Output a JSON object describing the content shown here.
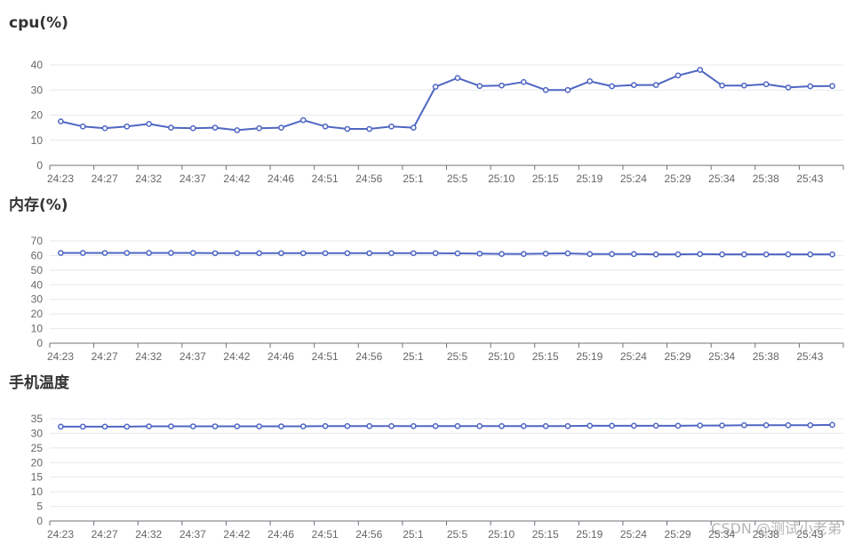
{
  "style": {
    "line_color": "#4f66c2",
    "grid_color": "#e6e8ee",
    "axis_color": "#6e7079"
  },
  "watermark": "CSDN @测试小老弟",
  "chart_data": [
    {
      "type": "line",
      "title": "cpu(%)",
      "ylim": [
        0,
        40
      ],
      "yticks": [
        0,
        10,
        20,
        30,
        40
      ],
      "x_labels": [
        "24:23",
        "24:27",
        "24:32",
        "24:37",
        "24:42",
        "24:46",
        "24:51",
        "24:56",
        "25:1",
        "25:5",
        "25:10",
        "25:15",
        "25:19",
        "25:24",
        "25:29",
        "25:34",
        "25:38",
        "25:43"
      ],
      "values": [
        17.5,
        15.5,
        14.8,
        15.5,
        16.5,
        15,
        14.8,
        15,
        14,
        14.8,
        15,
        18,
        15.5,
        14.5,
        14.5,
        15.5,
        15,
        31.3,
        34.8,
        31.6,
        31.8,
        33.2,
        30,
        30,
        33.5,
        31.5,
        32,
        32,
        35.8,
        38,
        31.8,
        31.8,
        32.3,
        31,
        31.5,
        31.6
      ]
    },
    {
      "type": "line",
      "title": "内存(%)",
      "ylim": [
        0,
        70
      ],
      "yticks": [
        0,
        10,
        20,
        30,
        40,
        50,
        60,
        70
      ],
      "x_labels": [
        "24:23",
        "24:27",
        "24:32",
        "24:37",
        "24:42",
        "24:46",
        "24:51",
        "24:56",
        "25:1",
        "25:5",
        "25:10",
        "25:15",
        "25:19",
        "25:24",
        "25:29",
        "25:34",
        "25:38",
        "25:43"
      ],
      "values": [
        61.8,
        61.8,
        61.8,
        61.8,
        61.8,
        61.8,
        61.8,
        61.6,
        61.6,
        61.6,
        61.6,
        61.6,
        61.6,
        61.6,
        61.6,
        61.6,
        61.6,
        61.6,
        61.5,
        61.3,
        61.1,
        61.1,
        61.3,
        61.5,
        61,
        61,
        61,
        60.8,
        60.8,
        61,
        60.8,
        60.8,
        60.8,
        60.8,
        60.8,
        60.8
      ]
    },
    {
      "type": "line",
      "title": "手机温度",
      "ylim": [
        0,
        35
      ],
      "yticks": [
        0,
        5,
        10,
        15,
        20,
        25,
        30,
        35
      ],
      "x_labels": [
        "24:23",
        "24:27",
        "24:32",
        "24:37",
        "24:42",
        "24:46",
        "24:51",
        "24:56",
        "25:1",
        "25:5",
        "25:10",
        "25:15",
        "25:19",
        "25:24",
        "25:29",
        "25:34",
        "25:38",
        "25:43"
      ],
      "values": [
        32.3,
        32.3,
        32.3,
        32.3,
        32.4,
        32.4,
        32.4,
        32.4,
        32.4,
        32.4,
        32.4,
        32.4,
        32.5,
        32.5,
        32.5,
        32.5,
        32.5,
        32.5,
        32.5,
        32.5,
        32.5,
        32.5,
        32.5,
        32.5,
        32.6,
        32.6,
        32.6,
        32.6,
        32.6,
        32.7,
        32.7,
        32.8,
        32.8,
        32.8,
        32.8,
        32.9
      ]
    }
  ]
}
